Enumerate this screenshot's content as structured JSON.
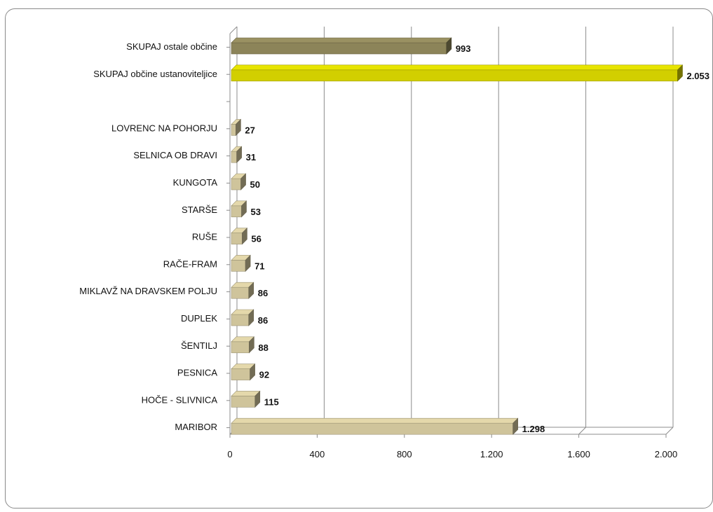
{
  "chart_data": {
    "type": "bar",
    "orientation": "horizontal",
    "categories": [
      "SKUPAJ ostale občine",
      "SKUPAJ občine ustanoviteljice",
      "",
      "LOVRENC NA POHORJU",
      "SELNICA OB DRAVI",
      "KUNGOTA",
      "STARŠE",
      "RUŠE",
      "RAČE-FRAM",
      "MIKLAVŽ NA DRAVSKEM POLJU",
      "DUPLEK",
      "ŠENTILJ",
      "PESNICA",
      "HOČE - SLIVNICA",
      "MARIBOR"
    ],
    "values": [
      993,
      2053,
      null,
      27,
      31,
      50,
      53,
      56,
      71,
      86,
      86,
      88,
      92,
      115,
      1298
    ],
    "value_labels": [
      "993",
      "2.053",
      "",
      "27",
      "31",
      "50",
      "53",
      "56",
      "71",
      "86",
      "86",
      "88",
      "92",
      "115",
      "1.298"
    ],
    "bar_colors": [
      "#8c8459",
      "#d2cf00",
      "",
      "#cfc49b",
      "#cfc49b",
      "#cfc49b",
      "#cfc49b",
      "#cfc49b",
      "#cfc49b",
      "#cfc49b",
      "#cfc49b",
      "#cfc49b",
      "#cfc49b",
      "#cfc49b",
      "#cfc49b"
    ],
    "xlim": [
      0,
      2000
    ],
    "x_ticks": [
      0,
      400,
      800,
      1200,
      1600,
      2000
    ],
    "x_tick_labels": [
      "0",
      "400",
      "800",
      "1.200",
      "1.600",
      "2.000"
    ],
    "title": "",
    "xlabel": "",
    "ylabel": "",
    "grid": true,
    "legend": "none",
    "style": "3d"
  }
}
